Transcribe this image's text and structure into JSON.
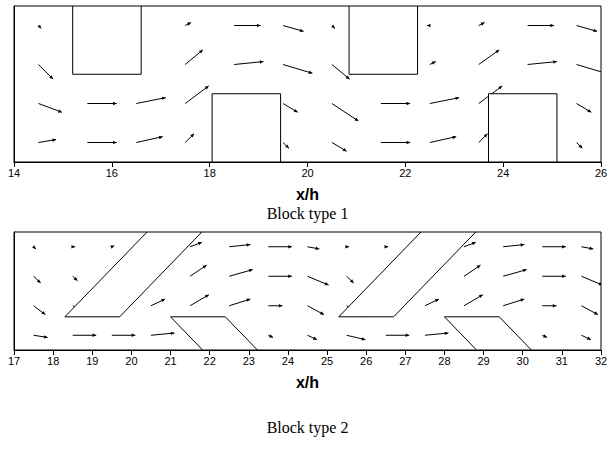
{
  "chart_data": [
    {
      "type": "quiver",
      "title": "Block type 1",
      "x_label": "x/h",
      "xlim": [
        14,
        26
      ],
      "xticks": [
        14,
        16,
        18,
        20,
        22,
        24,
        26
      ],
      "ylim": [
        0,
        3.2
      ],
      "tick_labels": "x",
      "grid": false,
      "blocks": [
        [
          [
            15.2,
            1.8
          ],
          [
            16.6,
            1.8
          ],
          [
            16.6,
            3.2
          ],
          [
            15.2,
            3.2
          ]
        ],
        [
          [
            18.05,
            0
          ],
          [
            19.45,
            0
          ],
          [
            19.45,
            1.4
          ],
          [
            18.05,
            1.4
          ]
        ],
        [
          [
            20.85,
            1.8
          ],
          [
            22.25,
            1.8
          ],
          [
            22.25,
            3.2
          ],
          [
            20.85,
            3.2
          ]
        ],
        [
          [
            23.7,
            0
          ],
          [
            25.1,
            0
          ],
          [
            25.1,
            1.4
          ],
          [
            23.7,
            1.4
          ]
        ]
      ],
      "vectors": [
        [
          14.5,
          0.4,
          0.6,
          0.1
        ],
        [
          14.5,
          1.2,
          0.8,
          -0.3
        ],
        [
          14.5,
          2.0,
          0.5,
          -0.5
        ],
        [
          14.5,
          2.8,
          0.1,
          -0.1
        ],
        [
          15.5,
          0.4,
          1.0,
          0.0
        ],
        [
          15.5,
          1.2,
          1.0,
          0.0
        ],
        [
          16.5,
          0.4,
          0.9,
          0.2
        ],
        [
          16.5,
          1.2,
          1.0,
          0.2
        ],
        [
          17.5,
          0.4,
          0.3,
          0.3
        ],
        [
          17.5,
          1.2,
          0.8,
          0.6
        ],
        [
          17.5,
          2.0,
          0.6,
          0.5
        ],
        [
          17.5,
          2.8,
          0.2,
          0.1
        ],
        [
          18.5,
          2.0,
          1.0,
          0.1
        ],
        [
          18.5,
          2.8,
          0.9,
          0.0
        ],
        [
          19.5,
          0.4,
          0.2,
          -0.2
        ],
        [
          19.5,
          1.2,
          0.5,
          -0.3
        ],
        [
          19.5,
          2.0,
          1.0,
          -0.3
        ],
        [
          19.5,
          2.8,
          0.7,
          -0.2
        ],
        [
          20.5,
          0.4,
          0.5,
          -0.3
        ],
        [
          20.5,
          1.2,
          0.9,
          -0.6
        ],
        [
          20.5,
          2.0,
          0.6,
          -0.5
        ],
        [
          20.5,
          2.8,
          0.1,
          -0.1
        ],
        [
          21.5,
          0.4,
          1.0,
          0.0
        ],
        [
          21.5,
          1.2,
          1.0,
          0.0
        ],
        [
          22.5,
          0.4,
          0.9,
          0.2
        ],
        [
          22.5,
          1.2,
          1.0,
          0.2
        ],
        [
          22.5,
          2.0,
          0.2,
          0.1
        ],
        [
          22.5,
          2.8,
          -0.1,
          0.0
        ],
        [
          23.5,
          0.4,
          0.3,
          0.3
        ],
        [
          23.5,
          1.2,
          0.8,
          0.6
        ],
        [
          23.5,
          2.0,
          0.7,
          0.5
        ],
        [
          23.5,
          2.8,
          0.2,
          0.1
        ],
        [
          24.5,
          2.0,
          1.0,
          0.1
        ],
        [
          24.5,
          2.8,
          0.9,
          0.0
        ],
        [
          25.5,
          0.4,
          0.2,
          -0.2
        ],
        [
          25.5,
          1.2,
          0.5,
          -0.3
        ],
        [
          25.5,
          2.0,
          1.0,
          -0.3
        ],
        [
          25.5,
          2.8,
          0.7,
          -0.2
        ]
      ]
    },
    {
      "type": "quiver",
      "title": "Block type 2",
      "x_label": "x/h",
      "xlim": [
        17,
        32
      ],
      "xticks": [
        17,
        18,
        19,
        20,
        21,
        22,
        23,
        24,
        25,
        26,
        27,
        28,
        29,
        30,
        31,
        32
      ],
      "ylim": [
        0,
        3.2
      ],
      "tick_labels": "x",
      "grid": false,
      "blocks": [
        [
          [
            18.3,
            0.9
          ],
          [
            19.7,
            0.9
          ],
          [
            21.8,
            3.2
          ],
          [
            20.4,
            3.2
          ]
        ],
        [
          [
            21.0,
            0.9
          ],
          [
            22.4,
            0.9
          ],
          [
            23.22,
            0
          ],
          [
            21.82,
            0
          ]
        ],
        [
          [
            25.3,
            0.9
          ],
          [
            26.7,
            0.9
          ],
          [
            28.8,
            3.2
          ],
          [
            27.4,
            3.2
          ]
        ],
        [
          [
            28.0,
            0.9
          ],
          [
            29.4,
            0.9
          ],
          [
            30.22,
            0
          ],
          [
            28.82,
            0
          ]
        ]
      ],
      "vectors": [
        [
          17.5,
          0.4,
          0.6,
          -0.1
        ],
        [
          17.5,
          1.2,
          0.5,
          -0.4
        ],
        [
          17.5,
          2.0,
          0.3,
          -0.3
        ],
        [
          17.5,
          2.8,
          0.1,
          -0.1
        ],
        [
          18.5,
          0.4,
          1.0,
          0.0
        ],
        [
          18.5,
          1.2,
          0.6,
          -0.3
        ],
        [
          18.5,
          2.0,
          0.2,
          -0.2
        ],
        [
          18.5,
          2.8,
          0.1,
          0.0
        ],
        [
          19.5,
          0.4,
          1.0,
          0.0
        ],
        [
          19.5,
          2.8,
          0.1,
          0.05
        ],
        [
          20.5,
          0.4,
          1.0,
          0.1
        ],
        [
          20.5,
          1.2,
          0.6,
          0.3
        ],
        [
          21.5,
          1.2,
          0.8,
          0.5
        ],
        [
          21.5,
          2.0,
          0.7,
          0.5
        ],
        [
          21.5,
          2.8,
          0.5,
          0.2
        ],
        [
          22.5,
          1.2,
          0.9,
          0.3
        ],
        [
          22.5,
          2.0,
          1.0,
          0.3
        ],
        [
          22.5,
          2.8,
          0.9,
          0.1
        ],
        [
          23.5,
          0.4,
          0.2,
          -0.1
        ],
        [
          23.5,
          1.2,
          0.6,
          0.0
        ],
        [
          23.5,
          2.0,
          1.0,
          0.0
        ],
        [
          23.5,
          2.8,
          1.0,
          0.0
        ],
        [
          24.5,
          0.4,
          0.4,
          -0.2
        ],
        [
          24.5,
          1.2,
          0.7,
          -0.4
        ],
        [
          24.5,
          2.0,
          0.9,
          -0.4
        ],
        [
          24.5,
          2.8,
          0.5,
          -0.1
        ],
        [
          25.5,
          0.4,
          0.8,
          -0.2
        ],
        [
          25.5,
          1.2,
          0.7,
          -0.5
        ],
        [
          25.5,
          2.0,
          0.3,
          -0.3
        ],
        [
          25.5,
          2.8,
          0.1,
          0.0
        ],
        [
          26.5,
          0.4,
          1.0,
          0.0
        ],
        [
          26.5,
          2.8,
          0.1,
          0.0
        ],
        [
          27.5,
          0.4,
          1.0,
          0.1
        ],
        [
          27.5,
          1.2,
          0.6,
          0.3
        ],
        [
          28.5,
          1.2,
          0.8,
          0.5
        ],
        [
          28.5,
          2.0,
          0.7,
          0.5
        ],
        [
          28.5,
          2.8,
          0.5,
          0.2
        ],
        [
          29.5,
          1.2,
          0.9,
          0.3
        ],
        [
          29.5,
          2.0,
          1.0,
          0.3
        ],
        [
          29.5,
          2.8,
          0.9,
          0.1
        ],
        [
          30.5,
          0.4,
          0.2,
          -0.1
        ],
        [
          30.5,
          1.2,
          0.6,
          0.0
        ],
        [
          30.5,
          2.0,
          1.0,
          0.0
        ],
        [
          30.5,
          2.8,
          1.0,
          0.0
        ],
        [
          31.5,
          0.4,
          0.4,
          -0.2
        ],
        [
          31.5,
          1.2,
          0.7,
          -0.4
        ],
        [
          31.5,
          2.0,
          0.9,
          -0.4
        ],
        [
          31.5,
          2.8,
          0.5,
          -0.1
        ]
      ]
    }
  ]
}
